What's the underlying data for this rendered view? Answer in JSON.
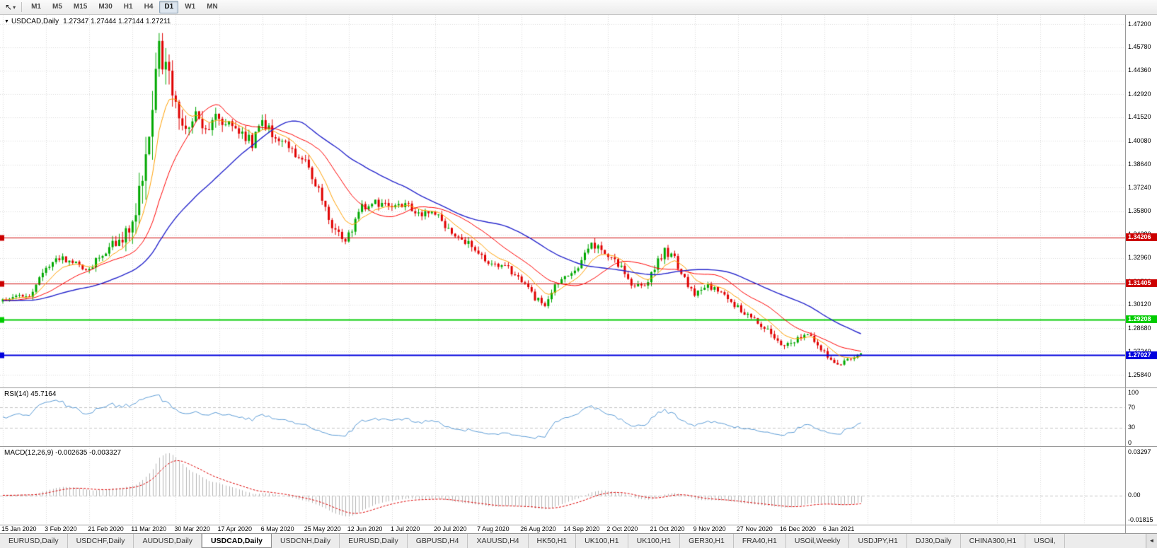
{
  "toolbar": {
    "cursor_tool_icon": "↖",
    "cursor_dropdown_icon": "▾",
    "timeframes": [
      {
        "label": "M1",
        "active": false
      },
      {
        "label": "M5",
        "active": false
      },
      {
        "label": "M15",
        "active": false
      },
      {
        "label": "M30",
        "active": false
      },
      {
        "label": "H1",
        "active": false
      },
      {
        "label": "H4",
        "active": false
      },
      {
        "label": "D1",
        "active": true
      },
      {
        "label": "W1",
        "active": false
      },
      {
        "label": "MN",
        "active": false
      }
    ]
  },
  "chart": {
    "collapse_icon": "▼",
    "symbol_title": "USDCAD,Daily",
    "ohlc_text": "1.27347 1.27444 1.27144 1.27211",
    "price_axis_labels": [
      "1.47200",
      "1.45780",
      "1.44360",
      "1.42920",
      "1.41520",
      "1.40080",
      "1.38640",
      "1.37240",
      "1.35800",
      "1.34380",
      "1.32960",
      "1.31520",
      "1.30120",
      "1.28680",
      "1.27240",
      "1.25840"
    ],
    "date_axis_labels": [
      "15 Jan 2020",
      "3 Feb 2020",
      "21 Feb 2020",
      "11 Mar 2020",
      "30 Mar 2020",
      "17 Apr 2020",
      "6 May 2020",
      "25 May 2020",
      "12 Jun 2020",
      "1 Jul 2020",
      "20 Jul 2020",
      "7 Aug 2020",
      "26 Aug 2020",
      "14 Sep 2020",
      "2 Oct 2020",
      "21 Oct 2020",
      "9 Nov 2020",
      "27 Nov 2020",
      "16 Dec 2020",
      "6 Jan 2021"
    ],
    "levels": [
      {
        "label": "1.34206",
        "price": 1.34206,
        "color": "#cc0000",
        "line_width": 1
      },
      {
        "label": "1.31405",
        "price": 1.31405,
        "color": "#cc0000",
        "line_width": 1
      },
      {
        "label": "1.29208",
        "price": 1.29208,
        "color": "#00cc00",
        "line_width": 2
      },
      {
        "label": "1.27027",
        "price": 1.27027,
        "color": "#0000dd",
        "line_width": 2
      }
    ]
  },
  "rsi_panel": {
    "label": "RSI(14) 45.7164",
    "axis_labels": [
      {
        "value": 100,
        "text": "100"
      },
      {
        "value": 70,
        "text": "70"
      },
      {
        "value": 30,
        "text": "30"
      },
      {
        "value": 0,
        "text": "0"
      }
    ],
    "dashed_levels": [
      70,
      30
    ],
    "line_color": "#5b9bd5"
  },
  "macd_panel": {
    "label": "MACD(12,26,9) -0.002635 -0.003327",
    "axis_labels": [
      {
        "value": 0.03297,
        "text": "0.03297"
      },
      {
        "value": 0,
        "text": "0.00"
      },
      {
        "value": -0.01815,
        "text": "-0.01815"
      }
    ],
    "histogram_color": "#b4b4b4",
    "signal_color": "#dd0000"
  },
  "tabs": {
    "scroll_left_icon": "◄",
    "items": [
      {
        "label": "EURUSD,Daily",
        "active": false
      },
      {
        "label": "USDCHF,Daily",
        "active": false
      },
      {
        "label": "AUDUSD,Daily",
        "active": false
      },
      {
        "label": "USDCAD,Daily",
        "active": true
      },
      {
        "label": "USDCNH,Daily",
        "active": false
      },
      {
        "label": "EURUSD,Daily",
        "active": false
      },
      {
        "label": "GBPUSD,H4",
        "active": false
      },
      {
        "label": "XAUUSD,H4",
        "active": false
      },
      {
        "label": "HK50,H1",
        "active": false
      },
      {
        "label": "UK100,H1",
        "active": false
      },
      {
        "label": "UK100,H1",
        "active": false
      },
      {
        "label": "GER30,H1",
        "active": false
      },
      {
        "label": "FRA40,H1",
        "active": false
      },
      {
        "label": "USOil,Weekly",
        "active": false
      },
      {
        "label": "USDJPY,H1",
        "active": false
      },
      {
        "label": "DJ30,Daily",
        "active": false
      },
      {
        "label": "CHINA300,H1",
        "active": false
      },
      {
        "label": "USOil,",
        "active": false
      }
    ]
  },
  "chart_data": {
    "type": "candlestick",
    "symbol": "USDCAD",
    "timeframe": "Daily",
    "current_ohlc": {
      "open": 1.27347,
      "high": 1.27444,
      "low": 1.27144,
      "close": 1.27211
    },
    "price_range": [
      1.2584,
      1.472
    ],
    "visible_candles": 259,
    "candles_per_date_tick": 13,
    "horizontal_levels": [
      1.34206,
      1.31405,
      1.29208,
      1.27027
    ],
    "candle_up_color": "#00a800",
    "candle_down_color": "#e00000",
    "price_path_anchors": [
      [
        0,
        1.3035,
        0.004
      ],
      [
        8,
        1.3065,
        0.004
      ],
      [
        13,
        1.3245,
        0.005
      ],
      [
        18,
        1.33,
        0.005
      ],
      [
        22,
        1.3255,
        0.004
      ],
      [
        26,
        1.3225,
        0.004
      ],
      [
        30,
        1.333,
        0.006
      ],
      [
        34,
        1.339,
        0.008
      ],
      [
        38,
        1.346,
        0.012
      ],
      [
        41,
        1.372,
        0.02
      ],
      [
        43,
        1.395,
        0.022
      ],
      [
        45,
        1.428,
        0.026
      ],
      [
        47,
        1.461,
        0.026
      ],
      [
        49,
        1.443,
        0.022
      ],
      [
        52,
        1.424,
        0.016
      ],
      [
        55,
        1.408,
        0.013
      ],
      [
        58,
        1.417,
        0.011
      ],
      [
        61,
        1.406,
        0.01
      ],
      [
        64,
        1.415,
        0.009
      ],
      [
        67,
        1.412,
        0.009
      ],
      [
        71,
        1.406,
        0.008
      ],
      [
        75,
        1.4,
        0.008
      ],
      [
        78,
        1.411,
        0.008
      ],
      [
        82,
        1.403,
        0.007
      ],
      [
        86,
        1.397,
        0.007
      ],
      [
        91,
        1.389,
        0.007
      ],
      [
        95,
        1.372,
        0.007
      ],
      [
        99,
        1.35,
        0.007
      ],
      [
        102,
        1.339,
        0.006
      ],
      [
        105,
        1.348,
        0.006
      ],
      [
        108,
        1.36,
        0.006
      ],
      [
        112,
        1.363,
        0.005
      ],
      [
        117,
        1.36,
        0.005
      ],
      [
        121,
        1.362,
        0.005
      ],
      [
        126,
        1.356,
        0.005
      ],
      [
        130,
        1.357,
        0.005
      ],
      [
        134,
        1.347,
        0.005
      ],
      [
        139,
        1.34,
        0.005
      ],
      [
        143,
        1.331,
        0.005
      ],
      [
        148,
        1.325,
        0.004
      ],
      [
        152,
        1.323,
        0.004
      ],
      [
        156,
        1.315,
        0.004
      ],
      [
        160,
        1.305,
        0.004
      ],
      [
        163,
        1.3005,
        0.004
      ],
      [
        166,
        1.312,
        0.004
      ],
      [
        169,
        1.318,
        0.004
      ],
      [
        173,
        1.323,
        0.005
      ],
      [
        177,
        1.339,
        0.006
      ],
      [
        180,
        1.333,
        0.005
      ],
      [
        183,
        1.329,
        0.005
      ],
      [
        186,
        1.325,
        0.005
      ],
      [
        189,
        1.314,
        0.004
      ],
      [
        193,
        1.313,
        0.004
      ],
      [
        196,
        1.324,
        0.005
      ],
      [
        199,
        1.333,
        0.006
      ],
      [
        202,
        1.329,
        0.005
      ],
      [
        205,
        1.316,
        0.005
      ],
      [
        208,
        1.307,
        0.005
      ],
      [
        212,
        1.313,
        0.004
      ],
      [
        216,
        1.308,
        0.004
      ],
      [
        221,
        1.299,
        0.004
      ],
      [
        225,
        1.293,
        0.004
      ],
      [
        230,
        1.285,
        0.004
      ],
      [
        234,
        1.276,
        0.004
      ],
      [
        238,
        1.279,
        0.004
      ],
      [
        242,
        1.284,
        0.004
      ],
      [
        245,
        1.278,
        0.004
      ],
      [
        248,
        1.269,
        0.004
      ],
      [
        251,
        1.263,
        0.004
      ],
      [
        254,
        1.268,
        0.003
      ],
      [
        258,
        1.2721,
        0.003
      ]
    ],
    "indicators": [
      {
        "name": "MA fast",
        "type": "ema",
        "period": 9,
        "color": "#ff9f00"
      },
      {
        "name": "MA mid",
        "type": "sma",
        "period": 20,
        "color": "#ff0000"
      },
      {
        "name": "MA slow",
        "type": "sma",
        "period": 45,
        "color": "#2727cc"
      },
      {
        "name": "RSI",
        "period": 14,
        "current": 45.7164
      },
      {
        "name": "MACD",
        "fast": 12,
        "slow": 26,
        "signal": 9,
        "current_values": [
          -0.002635,
          -0.003327
        ]
      }
    ]
  }
}
